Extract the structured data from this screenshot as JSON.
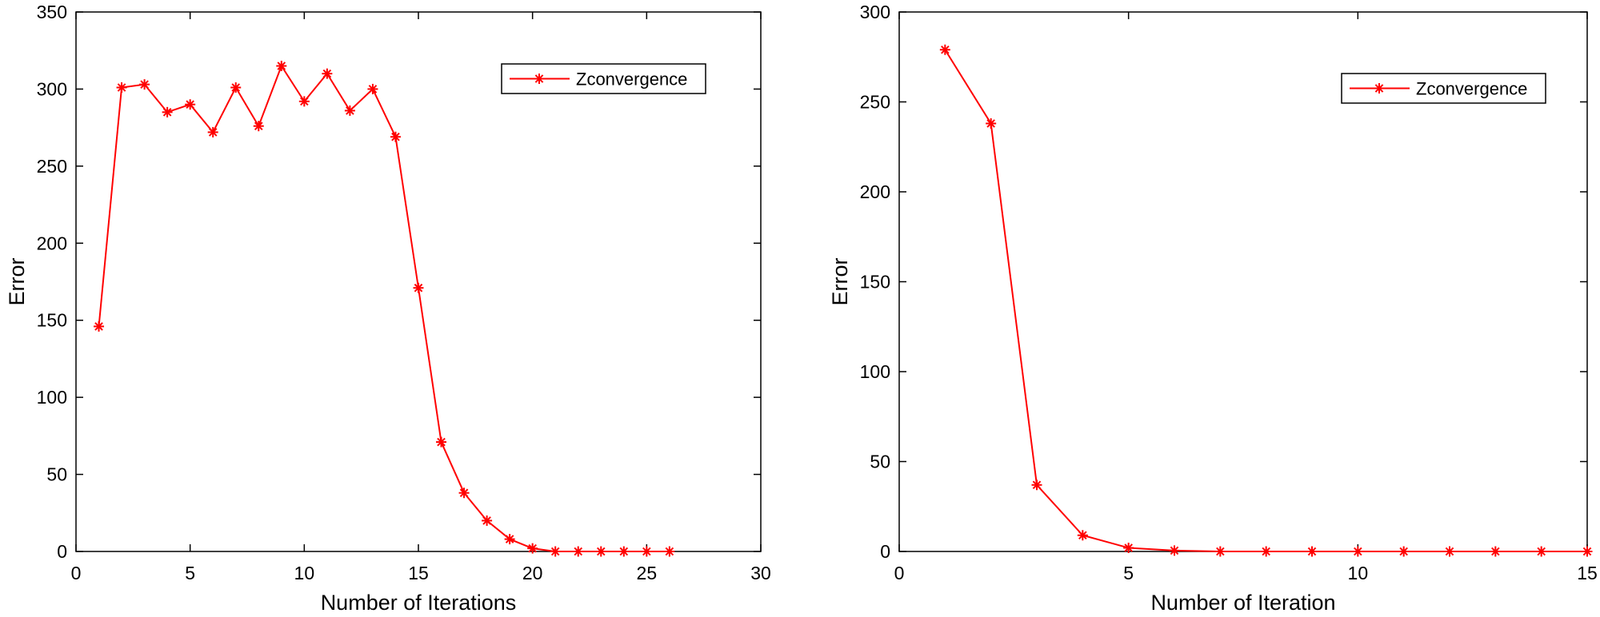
{
  "chart_data": [
    {
      "type": "line",
      "xlabel": "Number of Iterations",
      "ylabel": "Error",
      "xlim": [
        0,
        30
      ],
      "ylim": [
        0,
        350
      ],
      "xticks": [
        0,
        5,
        10,
        15,
        20,
        25,
        30
      ],
      "yticks": [
        0,
        50,
        100,
        150,
        200,
        250,
        300,
        350
      ],
      "grid": false,
      "legend": "top-right",
      "series": [
        {
          "name": "Zconvergence",
          "color": "#ff0000",
          "marker": "asterisk",
          "x": [
            1,
            2,
            3,
            4,
            5,
            6,
            7,
            8,
            9,
            10,
            11,
            12,
            13,
            14,
            15,
            16,
            17,
            18,
            19,
            20,
            21,
            22,
            23,
            24,
            25,
            26
          ],
          "y": [
            146,
            301,
            303,
            285,
            290,
            272,
            301,
            276,
            315,
            292,
            310,
            286,
            300,
            269,
            171,
            71,
            38,
            20,
            8,
            2,
            0,
            0,
            0,
            0,
            0,
            0
          ]
        }
      ]
    },
    {
      "type": "line",
      "xlabel": "Number of Iteration",
      "ylabel": "Error",
      "xlim": [
        0,
        15
      ],
      "ylim": [
        0,
        300
      ],
      "xticks": [
        0,
        5,
        10,
        15
      ],
      "yticks": [
        0,
        50,
        100,
        150,
        200,
        250,
        300
      ],
      "grid": false,
      "legend": "top-right",
      "series": [
        {
          "name": "Zconvergence",
          "color": "#ff0000",
          "marker": "asterisk",
          "x": [
            1,
            2,
            3,
            4,
            5,
            6,
            7,
            8,
            9,
            10,
            11,
            12,
            13,
            14,
            15
          ],
          "y": [
            279,
            238,
            37,
            9,
            2,
            0.5,
            0,
            0,
            0,
            0,
            0,
            0,
            0,
            0,
            0
          ]
        }
      ]
    }
  ]
}
